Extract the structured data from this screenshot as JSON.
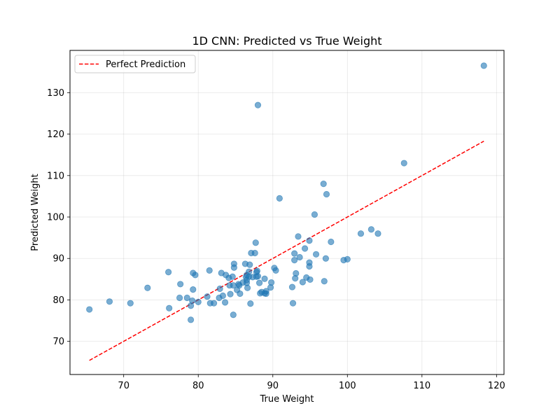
{
  "chart_data": {
    "type": "scatter",
    "title": "1D CNN: Predicted vs True Weight",
    "xlabel": "True Weight",
    "ylabel": "Predicted Weight",
    "xlim": [
      62.8,
      121.0
    ],
    "ylim": [
      62.0,
      140.2
    ],
    "xticks": [
      70,
      80,
      90,
      100,
      110,
      120
    ],
    "yticks": [
      70,
      80,
      90,
      100,
      110,
      120,
      130
    ],
    "grid": true,
    "legend_position": "top-left",
    "colors": {
      "points": "#1f77b4",
      "line": "#ff0000"
    },
    "series": [
      {
        "kind": "line",
        "name": "Perfect Prediction",
        "style": "dashed",
        "x": [
          65.4,
          118.3
        ],
        "y": [
          65.4,
          118.3
        ]
      },
      {
        "kind": "scatter",
        "x": [
          65.4,
          68.1,
          70.9,
          73.2,
          76.0,
          76.1,
          77.5,
          77.6,
          78.5,
          79.0,
          79.0,
          79.2,
          79.3,
          79.3,
          79.6,
          80.0,
          81.2,
          81.5,
          81.6,
          82.1,
          82.8,
          82.9,
          83.1,
          83.3,
          83.6,
          83.7,
          84.1,
          84.2,
          84.3,
          84.6,
          84.7,
          84.7,
          84.8,
          84.8,
          85.2,
          85.4,
          85.5,
          85.6,
          86.0,
          86.3,
          86.4,
          86.5,
          86.5,
          86.5,
          86.6,
          86.8,
          86.8,
          86.9,
          87.0,
          87.1,
          87.3,
          87.6,
          87.7,
          87.8,
          87.8,
          87.9,
          88.0,
          88.0,
          88.2,
          88.3,
          88.5,
          88.9,
          88.9,
          89.1,
          89.1,
          89.7,
          89.8,
          90.2,
          90.4,
          90.9,
          92.6,
          92.7,
          92.9,
          92.9,
          93.0,
          93.1,
          93.4,
          93.6,
          94.0,
          94.3,
          94.5,
          94.9,
          94.9,
          94.9,
          95.0,
          95.6,
          95.8,
          96.8,
          96.9,
          97.1,
          97.2,
          97.8,
          99.5,
          100.0,
          101.8,
          103.2,
          104.1,
          107.6,
          118.3
        ],
        "y": [
          77.7,
          79.6,
          79.2,
          82.9,
          86.7,
          78.0,
          80.5,
          83.8,
          80.5,
          75.2,
          78.6,
          79.8,
          82.5,
          86.5,
          86.0,
          79.5,
          80.8,
          87.1,
          79.2,
          79.2,
          80.5,
          82.7,
          86.5,
          81.0,
          79.4,
          86.0,
          85.3,
          83.5,
          81.4,
          85.6,
          83.5,
          76.4,
          87.8,
          88.7,
          82.4,
          83.8,
          83.5,
          81.5,
          84.2,
          88.7,
          85.5,
          84.8,
          86.0,
          84.1,
          82.9,
          85.6,
          86.8,
          88.5,
          79.1,
          91.3,
          85.5,
          91.3,
          93.8,
          86.7,
          85.6,
          87.0,
          85.7,
          127.0,
          84.1,
          81.6,
          81.9,
          85.1,
          81.6,
          82.1,
          81.5,
          83.0,
          84.2,
          87.7,
          87.1,
          104.5,
          83.1,
          79.2,
          91.2,
          89.6,
          85.2,
          86.4,
          95.3,
          90.3,
          84.3,
          92.4,
          85.4,
          88.1,
          89.0,
          94.3,
          84.9,
          100.6,
          91.0,
          108.0,
          84.5,
          90.0,
          105.5,
          94.0,
          89.6,
          89.8,
          96.0,
          97.0,
          96.0,
          113.0,
          136.5
        ]
      }
    ]
  }
}
